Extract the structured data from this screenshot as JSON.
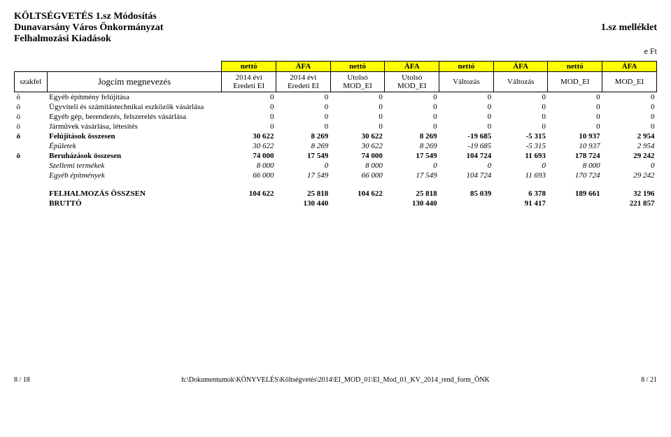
{
  "header": {
    "title1": "KÖLTSÉGVETÉS 1.sz Módosítás",
    "title2_left": "Dunavarsány Város Önkormányzat",
    "title2_right": "1.sz melléklet",
    "title3": "Felhalmozási Kiadások",
    "unit": "e Ft"
  },
  "colgroups": {
    "netto": "nettó",
    "afa": "ÁFA"
  },
  "columns": {
    "szakfel": "szakfel",
    "jogcim": "Jogcím megnevezés",
    "c1a": "2014 évi",
    "c1b": "Eredeti EI",
    "c2a": "2014 évi",
    "c2b": "Eredeti EI",
    "c3a": "Utolsó",
    "c3b": "MOD_EI",
    "c4a": "Utolsó",
    "c4b": "MOD_EI",
    "c5": "Változás",
    "c6": "Változás",
    "c7": "MOD_EI",
    "c8": "MOD_EI"
  },
  "rows": [
    {
      "style": "plain",
      "szak": "ö",
      "jog": "Egyéb építmény felújítása",
      "v": [
        "0",
        "0",
        "0",
        "0",
        "0",
        "0",
        "0",
        "0"
      ]
    },
    {
      "style": "plain",
      "szak": "ö",
      "jog": "Ügyviteli és számítástechnikai eszközök vásárlása",
      "v": [
        "0",
        "0",
        "0",
        "0",
        "0",
        "0",
        "0",
        "0"
      ]
    },
    {
      "style": "plain",
      "szak": "ö",
      "jog": "Egyéb gép, berendezés, felszerelés vásárlása",
      "v": [
        "0",
        "0",
        "0",
        "0",
        "0",
        "0",
        "0",
        "0"
      ]
    },
    {
      "style": "plain",
      "szak": "ö",
      "jog": "Járművek vásárlása, létesítés",
      "v": [
        "0",
        "0",
        "0",
        "0",
        "0",
        "0",
        "0",
        "0"
      ]
    },
    {
      "style": "bold",
      "szak": "ö",
      "jog": "Felújítások összesen",
      "v": [
        "30 622",
        "8 269",
        "30 622",
        "8 269",
        "-19 685",
        "-5 315",
        "10 937",
        "2 954"
      ]
    },
    {
      "style": "italic",
      "szak": "",
      "jog": "Épületek",
      "v": [
        "30 622",
        "8 269",
        "30 622",
        "8 269",
        "-19 685",
        "-5 315",
        "10 937",
        "2 954"
      ]
    },
    {
      "style": "bold",
      "szak": "ö",
      "jog": "Beruházások összesen",
      "v": [
        "74 000",
        "17 549",
        "74 000",
        "17 549",
        "104 724",
        "11 693",
        "178 724",
        "29 242"
      ]
    },
    {
      "style": "italic",
      "szak": "",
      "jog": "Szellemi termékek",
      "v": [
        "8 000",
        "0",
        "8 000",
        "0",
        "0",
        "0",
        "8 000",
        "0"
      ]
    },
    {
      "style": "italic",
      "szak": "",
      "jog": "Egyéb építmények",
      "v": [
        "66 000",
        "17 549",
        "66 000",
        "17 549",
        "104 724",
        "11 693",
        "170 724",
        "29 242"
      ]
    }
  ],
  "totals": [
    {
      "style": "bold",
      "szak": "",
      "jog": "FELHALMOZÁS ÖSSZSEN",
      "v": [
        "104 622",
        "25 818",
        "104 622",
        "25 818",
        "85 039",
        "6 378",
        "189 661",
        "32 196"
      ]
    },
    {
      "style": "bold",
      "szak": "",
      "jog": "BRUTTÓ",
      "v": [
        "",
        "130 440",
        "",
        "130 440",
        "",
        "91 417",
        "",
        "221 857"
      ]
    }
  ],
  "footer": {
    "left": "8 / 18",
    "mid": "h:\\Dokumentumok\\KÖNYVELÉS\\Költségvetés\\2014\\EI_MOD_01\\EI_Mod_01_KV_2014_rend_form_ÖNK",
    "right": "8 / 21"
  },
  "style": {
    "highlight": "#ffff00",
    "border": "#000000",
    "bg": "#ffffff"
  }
}
